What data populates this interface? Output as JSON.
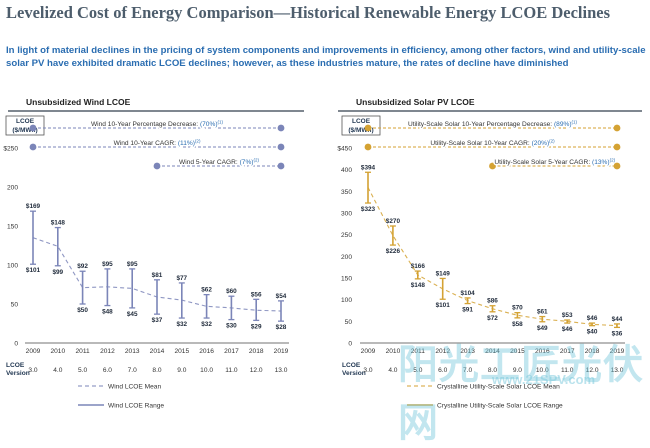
{
  "header": {
    "title": "Levelized Cost of Energy Comparison—Historical Renewable Energy LCOE Declines",
    "subtitle": "In light of material declines in the pricing of system components and improvements in efficiency, among other factors, wind and utility-scale solar PV have exhibited dramatic LCOE declines; however, as these industries mature, the rates of decline have diminished"
  },
  "watermark": {
    "text": "阳光工匠光伏网",
    "url": "www.21SPV.com"
  },
  "colors": {
    "wind": "#7b85b8",
    "solar": "#d4a233"
  },
  "chart_data": [
    {
      "type": "line",
      "title": "Unsubsidized Wind LCOE",
      "unit_label": "LCOE\n($/MWh)",
      "color": "#7b85b8",
      "x": [
        "2009",
        "2010",
        "2011",
        "2012",
        "2013",
        "2014",
        "2015",
        "2016",
        "2017",
        "2018",
        "2019"
      ],
      "version_label": "LCOE\nVersion",
      "versions": [
        "3.0",
        "4.0",
        "5.0",
        "6.0",
        "7.0",
        "8.0",
        "9.0",
        "10.0",
        "11.0",
        "12.0",
        "13.0"
      ],
      "y_ticks": [
        "$250",
        "200",
        "150",
        "100",
        "50",
        "0"
      ],
      "ylim": [
        0,
        250
      ],
      "grid": false,
      "series": [
        {
          "name": "Wind LCOE Mean",
          "style": "dashed",
          "values": [
            135,
            124,
            71,
            72,
            70,
            59,
            55,
            47,
            45,
            42,
            41
          ]
        },
        {
          "name": "Wind LCOE Range",
          "style": "range",
          "high": [
            169,
            148,
            92,
            95,
            95,
            81,
            77,
            62,
            60,
            56,
            54
          ],
          "low": [
            101,
            99,
            50,
            48,
            45,
            37,
            32,
            32,
            30,
            29,
            28
          ]
        }
      ],
      "high_labels": [
        "$169",
        "$148",
        "$92",
        "$95",
        "$95",
        "$81",
        "$77",
        "$62",
        "$60",
        "$56",
        "$54"
      ],
      "low_labels": [
        "$101",
        "$99",
        "$50",
        "$48",
        "$45",
        "$37",
        "$32",
        "$32",
        "$30",
        "$29",
        "$28"
      ],
      "annotations": [
        {
          "label": "Wind 10-Year Percentage Decrease:",
          "value": "(70%)",
          "note": "(1)",
          "from": 0,
          "to": 10
        },
        {
          "label": "Wind 10-Year CAGR:",
          "value": "(11%)",
          "note": "(2)",
          "from": 0,
          "to": 10
        },
        {
          "label": "Wind 5-Year CAGR:",
          "value": "(7%)",
          "note": "(2)",
          "from": 5,
          "to": 10
        }
      ]
    },
    {
      "type": "line",
      "title": "Unsubsidized Solar PV LCOE",
      "unit_label": "LCOE\n($/MWh)",
      "color": "#d4a233",
      "x": [
        "2009",
        "2010",
        "2011",
        "2012",
        "2013",
        "2014",
        "2015",
        "2016",
        "2017",
        "2018",
        "2019"
      ],
      "version_label": "LCOE\nVersion",
      "versions": [
        "3.0",
        "4.0",
        "5.0",
        "6.0",
        "7.0",
        "8.0",
        "9.0",
        "10.0",
        "11.0",
        "12.0",
        "13.0"
      ],
      "y_ticks": [
        "$450",
        "400",
        "350",
        "300",
        "250",
        "200",
        "150",
        "100",
        "50",
        "0"
      ],
      "ylim": [
        0,
        450
      ],
      "grid": false,
      "series": [
        {
          "name": "Crystalline Utility-Scale Solar LCOE Mean",
          "style": "dashed",
          "values": [
            359,
            248,
            157,
            125,
            98,
            79,
            64,
            55,
            50,
            43,
            40
          ]
        },
        {
          "name": "Crystalline Utility-Scale Solar LCOE Range",
          "style": "range",
          "high": [
            394,
            270,
            166,
            149,
            104,
            86,
            70,
            61,
            53,
            46,
            44
          ],
          "low": [
            323,
            226,
            148,
            101,
            91,
            72,
            58,
            49,
            46,
            40,
            36
          ]
        }
      ],
      "high_labels": [
        "$394",
        "$270",
        "$166",
        "$149",
        "$104",
        "$86",
        "$70",
        "$61",
        "$53",
        "$46",
        "$44"
      ],
      "low_labels": [
        "$323",
        "$226",
        "$148",
        "$101",
        "$91",
        "$72",
        "$58",
        "$49",
        "$46",
        "$40",
        "$36"
      ],
      "annotations": [
        {
          "label": "Utility-Scale Solar 10-Year Percentage Decrease:",
          "value": "(89%)",
          "note": "(1)",
          "from": 0,
          "to": 10
        },
        {
          "label": "Utility-Scale Solar 10-Year CAGR:",
          "value": "(20%)",
          "note": "(2)",
          "from": 0,
          "to": 10
        },
        {
          "label": "Utility-Scale Solar 5-Year CAGR:",
          "value": "(13%)",
          "note": "(2)",
          "from": 5,
          "to": 10
        }
      ]
    }
  ]
}
